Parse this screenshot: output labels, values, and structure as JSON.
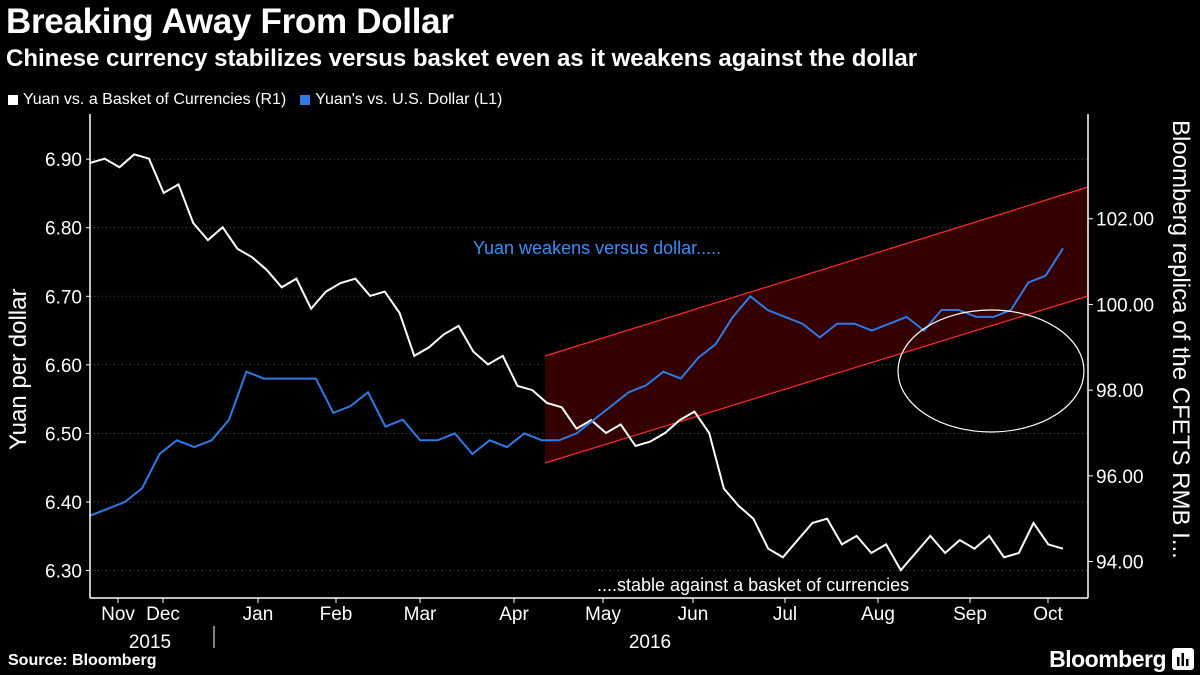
{
  "chart_data": {
    "type": "line",
    "title": "Breaking Away From Dollar",
    "subtitle": "Chinese currency stabilizes versus basket even as it weakens against the dollar",
    "series": [
      {
        "name": "Yuan vs. a Basket of Currencies (R1)",
        "axis": "right",
        "color": "#ffffff",
        "values": [
          103.3,
          103.4,
          103.2,
          103.5,
          103.4,
          102.6,
          102.8,
          101.9,
          101.5,
          101.8,
          101.3,
          101.1,
          100.8,
          100.4,
          100.6,
          99.9,
          100.3,
          100.5,
          100.6,
          100.2,
          100.3,
          99.8,
          98.8,
          99.0,
          99.3,
          99.5,
          98.9,
          98.6,
          98.8,
          98.1,
          98.0,
          97.7,
          97.6,
          97.1,
          97.3,
          97.0,
          97.2,
          96.7,
          96.8,
          97.0,
          97.3,
          97.5,
          97.0,
          95.7,
          95.3,
          95.0,
          94.3,
          94.1,
          94.5,
          94.9,
          95.0,
          94.4,
          94.6,
          94.2,
          94.4,
          93.8,
          94.2,
          94.6,
          94.2,
          94.5,
          94.3,
          94.6,
          94.1,
          94.2,
          94.9,
          94.4,
          94.3
        ]
      },
      {
        "name": "Yuan's vs. U.S. Dollar (L1)",
        "axis": "left",
        "color": "#2f7ae5",
        "values": [
          6.38,
          6.39,
          6.4,
          6.42,
          6.47,
          6.49,
          6.48,
          6.49,
          6.52,
          6.59,
          6.58,
          6.58,
          6.58,
          6.58,
          6.53,
          6.54,
          6.56,
          6.51,
          6.52,
          6.49,
          6.49,
          6.5,
          6.47,
          6.49,
          6.48,
          6.5,
          6.49,
          6.49,
          6.5,
          6.52,
          6.54,
          6.56,
          6.57,
          6.59,
          6.58,
          6.61,
          6.63,
          6.67,
          6.7,
          6.68,
          6.67,
          6.66,
          6.64,
          6.66,
          6.66,
          6.65,
          6.66,
          6.67,
          6.65,
          6.68,
          6.68,
          6.67,
          6.67,
          6.68,
          6.72,
          6.73,
          6.77
        ]
      }
    ],
    "x_tick_labels": [
      "Nov",
      "Dec",
      "Jan",
      "Feb",
      "Mar",
      "Apr",
      "May",
      "Jun",
      "Jul",
      "Aug",
      "Sep",
      "Oct"
    ],
    "year_labels": [
      "2015",
      "2016"
    ],
    "left_axis": {
      "label": "Yuan per dollar",
      "range": [
        6.26,
        6.96
      ],
      "ticks": [
        "6.30",
        "6.40",
        "6.50",
        "6.60",
        "6.70",
        "6.80",
        "6.90"
      ]
    },
    "right_axis": {
      "label": "Bloomberg replica of the CFETS RMB I...",
      "range": [
        93.15,
        104.35
      ],
      "ticks": [
        "94.00",
        "96.00",
        "98.00",
        "100.00",
        "102.00"
      ]
    },
    "annotations": [
      "Yuan weakens versus dollar.....",
      "....stable against a basket of currencies"
    ],
    "colors": {
      "channel_fill": "#3a0000",
      "channel_edge": "#ff2a2a",
      "grid": "#555555",
      "basket": "#ffffff",
      "dollar": "#2f7ae5"
    }
  },
  "footer": {
    "source": "Source: Bloomberg",
    "brand": "Bloomberg"
  }
}
